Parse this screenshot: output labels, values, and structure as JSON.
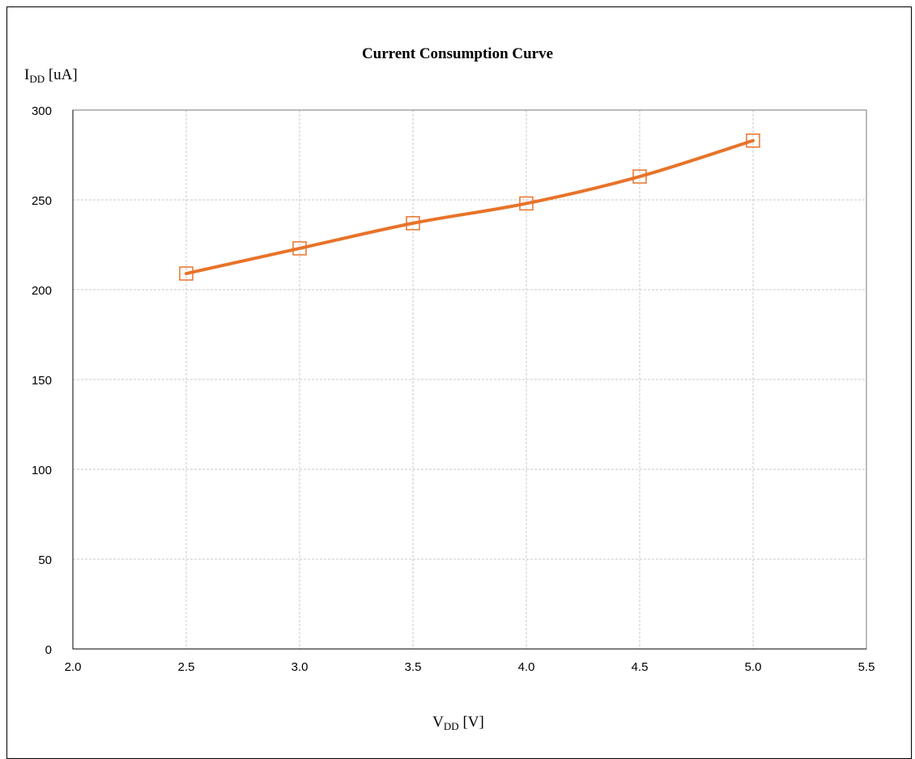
{
  "chart_data": {
    "type": "line",
    "title": "Current Consumption Curve",
    "ylabel_main": "I",
    "ylabel_sub": "DD",
    "ylabel_unit": " [uA]",
    "xlabel_main": "V",
    "xlabel_sub": "DD",
    "xlabel_unit": " [V]",
    "xlim": [
      2.0,
      5.5
    ],
    "ylim": [
      0,
      300
    ],
    "xticks": [
      "2.0",
      "2.5",
      "3.0",
      "3.5",
      "4.0",
      "4.5",
      "5.0",
      "5.5"
    ],
    "yticks": [
      "0",
      "50",
      "100",
      "150",
      "200",
      "250",
      "300"
    ],
    "grid": true,
    "series": [
      {
        "marker": "square",
        "color": "#E8732A",
        "x": [
          2.5,
          3.0,
          3.5,
          4.0,
          4.5,
          5.0
        ],
        "y": [
          209,
          223,
          237,
          248,
          263,
          283
        ]
      }
    ]
  }
}
